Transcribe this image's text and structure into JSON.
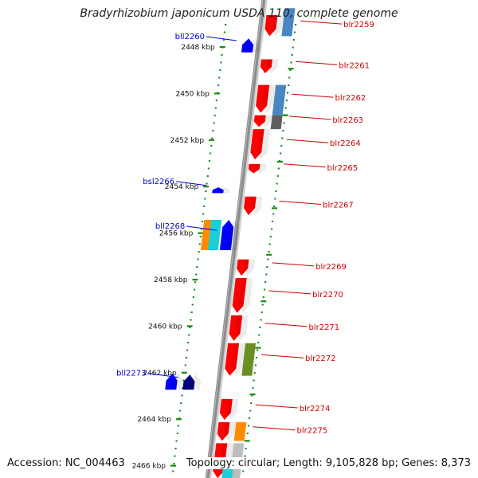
{
  "title": "Bradyrhizobium japonicum USDA 110, complete genome",
  "accession": "Accession: NC_004463",
  "summary": "Topology: circular; Length: 9,105,828 bp; Genes: 8,373",
  "colors": {
    "backbone": "#8c8c8c",
    "tick": "#1a8a1a",
    "forward_gene": "#ff0000",
    "reverse_gene": "#0000ff",
    "forward_label": "#cc0000",
    "reverse_label": "#0000cc",
    "steelblue": "#4a86c0",
    "darkgray": "#5e5e5e",
    "orange": "#ff8c00",
    "cyan": "#19d0d8",
    "olive": "#6a8f20",
    "navy": "#000080",
    "lightgray": "#bdbdbd"
  },
  "scale": {
    "unit": "kbp",
    "ticks": [
      {
        "label": "2448 kbp",
        "kbp": 2448
      },
      {
        "label": "2450 kbp",
        "kbp": 2450
      },
      {
        "label": "2452 kbp",
        "kbp": 2452
      },
      {
        "label": "2454 kbp",
        "kbp": 2454
      },
      {
        "label": "2456 kbp",
        "kbp": 2456
      },
      {
        "label": "2458 kbp",
        "kbp": 2458
      },
      {
        "label": "2460 kbp",
        "kbp": 2460
      },
      {
        "label": "2462 kbp",
        "kbp": 2462
      },
      {
        "label": "2464 kbp",
        "kbp": 2464
      },
      {
        "label": "2466 kbp",
        "kbp": 2466
      }
    ]
  },
  "genes": {
    "forward": [
      {
        "label": "blr2259",
        "start": 2446.7,
        "end": 2447.6,
        "color": "red"
      },
      {
        "label": "blr2261",
        "start": 2448.6,
        "end": 2449.2,
        "color": "red"
      },
      {
        "label": "blr2262",
        "start": 2449.7,
        "end": 2450.9,
        "color": "red"
      },
      {
        "label": "blr2263",
        "start": 2451.0,
        "end": 2451.5,
        "color": "red"
      },
      {
        "label": "blr2264",
        "start": 2451.6,
        "end": 2452.9,
        "color": "red"
      },
      {
        "label": "blr2265",
        "start": 2453.1,
        "end": 2453.5,
        "color": "red"
      },
      {
        "label": "blr2267",
        "start": 2454.5,
        "end": 2455.3,
        "color": "red"
      },
      {
        "label": "blr2269",
        "start": 2457.2,
        "end": 2457.9,
        "color": "red"
      },
      {
        "label": "blr2270",
        "start": 2458.0,
        "end": 2459.5,
        "color": "red"
      },
      {
        "label": "blr2271",
        "start": 2459.6,
        "end": 2460.7,
        "color": "red"
      },
      {
        "label": "blr2272",
        "start": 2460.8,
        "end": 2462.2,
        "color": "red"
      },
      {
        "label": "blr2274",
        "start": 2463.2,
        "end": 2464.1,
        "color": "red"
      },
      {
        "label": "blr2275",
        "start": 2464.2,
        "end": 2465.0,
        "color": "red"
      },
      {
        "label": "",
        "start": 2465.1,
        "end": 2466.6,
        "color": "red"
      }
    ],
    "reverse": [
      {
        "label": "bll2260",
        "start": 2447.7,
        "end": 2448.3,
        "color": "blue"
      },
      {
        "label": "bsl2266",
        "start": 2454.1,
        "end": 2454.35,
        "color": "blue"
      },
      {
        "label": "bll2268",
        "start": 2455.5,
        "end": 2456.8,
        "color": "blue"
      },
      {
        "label": "",
        "start": 2462.1,
        "end": 2462.8,
        "color": "blue"
      },
      {
        "label": "bll2273",
        "start": 2462.15,
        "end": 2462.8,
        "color": "navy"
      }
    ],
    "annotation_blocks": [
      {
        "start": 2446.4,
        "end": 2447.6,
        "color": "steelblue"
      },
      {
        "start": 2449.7,
        "end": 2451.0,
        "color": "steelblue"
      },
      {
        "start": 2451.0,
        "end": 2451.6,
        "color": "darkgray"
      },
      {
        "start": 2460.8,
        "end": 2462.2,
        "color": "olive"
      },
      {
        "start": 2464.2,
        "end": 2465.0,
        "color": "orange"
      },
      {
        "start": 2465.1,
        "end": 2466.6,
        "color": "lightgray"
      },
      {
        "start": 2455.5,
        "end": 2456.8,
        "color": "orange"
      },
      {
        "start": 2455.5,
        "end": 2456.8,
        "color": "cyan"
      },
      {
        "start": 2466.0,
        "end": 2466.6,
        "color": "cyan"
      }
    ]
  }
}
